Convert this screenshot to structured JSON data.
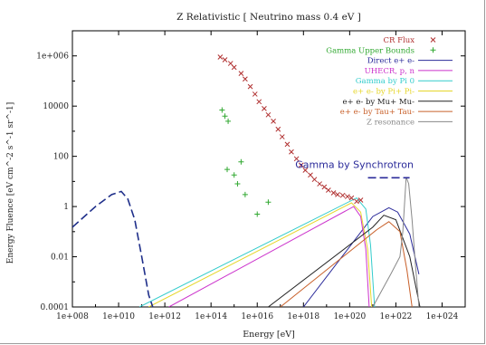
{
  "chart_data": {
    "type": "line",
    "title": "Z Relativistic [ Neutrino mass 0.4 eV ]",
    "xlabel": "Energy [eV]",
    "ylabel": "Energy Fluence [eV cm^-2 s^-1 sr^-1]",
    "xscale": "log",
    "yscale": "log",
    "xlim": [
      100000000.0,
      1e+25
    ],
    "ylim": [
      0.0001,
      10000000.0
    ],
    "x_ticks": [
      "1e+008",
      "1e+010",
      "1e+012",
      "1e+014",
      "1e+016",
      "1e+018",
      "1e+020",
      "1e+022",
      "1e+024"
    ],
    "y_ticks": [
      "0.0001",
      "0.01",
      "1",
      "100",
      "10000",
      "1e+006"
    ],
    "legend_position": "top-right",
    "annotation": {
      "text": "Gamma by Synchrotron",
      "color": "#2b2b9a",
      "x": 1.6e+20,
      "y": 35
    },
    "series": [
      {
        "name": "CR Flux",
        "style": "points-cross",
        "color": "#b03030",
        "points": [
          [
            250000000000000.0,
            900000.0
          ],
          [
            400000000000000.0,
            700000.0
          ],
          [
            700000000000000.0,
            500000.0
          ],
          [
            1000000000000000.0,
            350000.0
          ],
          [
            2000000000000000.0,
            200000.0
          ],
          [
            3000000000000000.0,
            120000.0
          ],
          [
            5000000000000000.0,
            60000.0
          ],
          [
            8000000000000000.0,
            30000.0
          ],
          [
            1.2e+16,
            15000.0
          ],
          [
            2e+16,
            8000
          ],
          [
            3e+16,
            4500
          ],
          [
            5e+16,
            2500
          ],
          [
            8e+16,
            1200
          ],
          [
            1.2e+17,
            600
          ],
          [
            2e+17,
            300
          ],
          [
            3e+17,
            150
          ],
          [
            5e+17,
            80
          ],
          [
            8e+17,
            45
          ],
          [
            1.2e+18,
            28
          ],
          [
            2e+18,
            18
          ],
          [
            3e+18,
            12
          ],
          [
            5e+18,
            8
          ],
          [
            8e+18,
            6
          ],
          [
            1.2e+19,
            4.5
          ],
          [
            2e+19,
            3.5
          ],
          [
            3e+19,
            3
          ],
          [
            5e+19,
            2.8
          ],
          [
            8e+19,
            2.5
          ],
          [
            1.2e+20,
            2.2
          ],
          [
            2e+20,
            1.6
          ],
          [
            3e+20,
            1.8
          ]
        ]
      },
      {
        "name": "Gamma Upper Bounds",
        "style": "points-plus",
        "color": "#30a830",
        "points": [
          [
            300000000000000.0,
            7000
          ],
          [
            400000000000000.0,
            4000
          ],
          [
            550000000000000.0,
            2500
          ],
          [
            500000000000000.0,
            30
          ],
          [
            1000000000000000.0,
            18
          ],
          [
            1400000000000000.0,
            8
          ],
          [
            2000000000000000.0,
            60
          ],
          [
            3000000000000000.0,
            3
          ],
          [
            1e+16,
            0.5
          ],
          [
            3e+16,
            1.5
          ]
        ]
      },
      {
        "name": "Direct e+ e-",
        "color": "#2a2a9a",
        "points": [
          [
            1e+18,
            0.0001
          ],
          [
            1e+21,
            0.4
          ],
          [
            5e+21,
            0.9
          ],
          [
            1.2e+22,
            0.6
          ],
          [
            4e+22,
            0.08
          ],
          [
            1e+23,
            0.002
          ]
        ]
      },
      {
        "name": "UHECR, p, n",
        "color": "#cc33cc",
        "points": [
          [
            1500000000000.0,
            0.0001
          ],
          [
            1.5e+20,
            1
          ],
          [
            3e+20,
            0.4
          ],
          [
            5e+20,
            0.02
          ],
          [
            7e+20,
            0.0001
          ]
        ]
      },
      {
        "name": "Gamma by Pi 0",
        "color": "#33cccc",
        "points": [
          [
            80000000000.0,
            0.0001
          ],
          [
            2e+20,
            2.2
          ],
          [
            5e+20,
            0.8
          ],
          [
            8e+20,
            0.03
          ],
          [
            1.2e+21,
            0.0001
          ]
        ]
      },
      {
        "name": "e+ e- by Pi+ Pi-",
        "color": "#e6d62a",
        "points": [
          [
            200000000000.0,
            0.0001
          ],
          [
            1.2e+20,
            1.4
          ],
          [
            3e+20,
            0.6
          ],
          [
            6e+20,
            0.02
          ],
          [
            9e+20,
            0.0001
          ]
        ]
      },
      {
        "name": "e+ e- by Mu+ Mu-",
        "color": "#222222",
        "points": [
          [
            3e+16,
            0.0001
          ],
          [
            1e+21,
            0.15
          ],
          [
            3e+21,
            0.45
          ],
          [
            1e+22,
            0.3
          ],
          [
            4e+22,
            0.01
          ],
          [
            1.1e+23,
            0.0001
          ]
        ]
      },
      {
        "name": "e+ e- by Tau+ Tau-",
        "color": "#c8602a",
        "points": [
          [
            1e+17,
            0.0001
          ],
          [
            1.5e+21,
            0.12
          ],
          [
            5e+21,
            0.25
          ],
          [
            1.5e+22,
            0.1
          ],
          [
            3e+22,
            0.003
          ],
          [
            5e+22,
            0.0001
          ]
        ]
      },
      {
        "name": "Z resonance",
        "color": "#888888",
        "points": [
          [
            1e+21,
            0.0001
          ],
          [
            6e+21,
            0.002
          ],
          [
            1.5e+22,
            0.01
          ],
          [
            2e+22,
            0.1
          ],
          [
            2.8e+22,
            15
          ],
          [
            3.6e+22,
            8
          ],
          [
            5e+22,
            0.3
          ],
          [
            7e+22,
            0.005
          ],
          [
            1e+23,
            0.0001
          ]
        ]
      },
      {
        "name": "",
        "dashed": true,
        "color": "#1f2f8a",
        "points": [
          [
            100000000.0,
            0.15
          ],
          [
            1000000000.0,
            1
          ],
          [
            5000000000.0,
            3
          ],
          [
            13000000000.0,
            4
          ],
          [
            25000000000.0,
            2
          ],
          [
            50000000000.0,
            0.3
          ],
          [
            100000000000.0,
            0.01
          ],
          [
            200000000000.0,
            0.0003
          ],
          [
            300000000000.0,
            0.0001
          ]
        ]
      }
    ]
  }
}
